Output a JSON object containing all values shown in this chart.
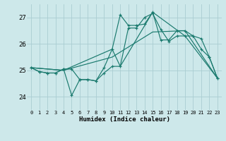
{
  "xlabel": "Humidex (Indice chaleur)",
  "background_color": "#cde8ea",
  "grid_color": "#aacdd2",
  "line_color": "#1a7a6e",
  "ylim": [
    23.5,
    27.5
  ],
  "y_ticks": [
    24,
    25,
    26,
    27
  ],
  "x_ticks": [
    0,
    1,
    2,
    3,
    4,
    5,
    6,
    7,
    8,
    9,
    10,
    11,
    12,
    13,
    14,
    15,
    16,
    17,
    18,
    19,
    20,
    21,
    22,
    23
  ],
  "series_upper": [
    25.1,
    24.95,
    24.9,
    24.9,
    25.05,
    25.05,
    24.65,
    24.65,
    24.6,
    25.1,
    25.8,
    27.1,
    26.7,
    26.7,
    26.75,
    27.2,
    26.15,
    26.15,
    26.5,
    26.5,
    26.3,
    26.2,
    25.5,
    24.7
  ],
  "series_lower": [
    25.1,
    24.95,
    24.9,
    24.9,
    25.05,
    24.05,
    24.65,
    24.65,
    24.6,
    24.9,
    25.15,
    25.15,
    26.6,
    26.6,
    27.0,
    27.15,
    26.55,
    26.1,
    26.3,
    26.3,
    26.3,
    25.8,
    25.5,
    24.7
  ],
  "trend1_x": [
    0,
    4,
    10,
    15,
    19,
    23
  ],
  "trend1_y": [
    25.1,
    25.0,
    25.5,
    26.45,
    26.5,
    24.7
  ],
  "trend2_x": [
    0,
    4,
    10,
    11,
    15,
    19,
    23
  ],
  "trend2_y": [
    25.1,
    25.0,
    25.8,
    25.15,
    27.2,
    26.3,
    24.7
  ]
}
